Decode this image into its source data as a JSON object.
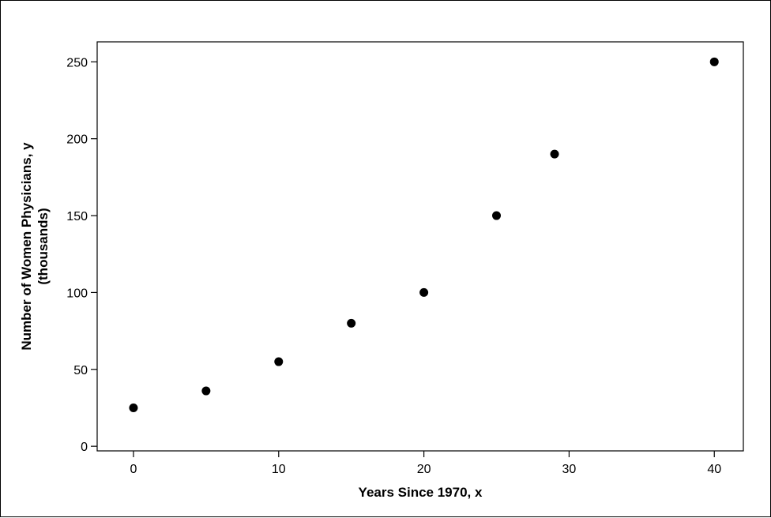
{
  "chart_data": {
    "type": "scatter",
    "x": [
      0,
      5,
      10,
      15,
      20,
      25,
      29,
      40
    ],
    "y": [
      25,
      36,
      55,
      80,
      100,
      150,
      190,
      250
    ],
    "xlabel": "Years Since 1970, x",
    "ylabel_line1": "Number of Women Physicians, y",
    "ylabel_line2": "(thousands)",
    "xlim": [
      -2.5,
      42
    ],
    "ylim": [
      -3,
      263
    ],
    "xticks": [
      0,
      10,
      20,
      30,
      40
    ],
    "yticks": [
      0,
      50,
      100,
      150,
      200,
      250
    ],
    "marker_color": "#000000",
    "grid": false,
    "legend": "none"
  }
}
